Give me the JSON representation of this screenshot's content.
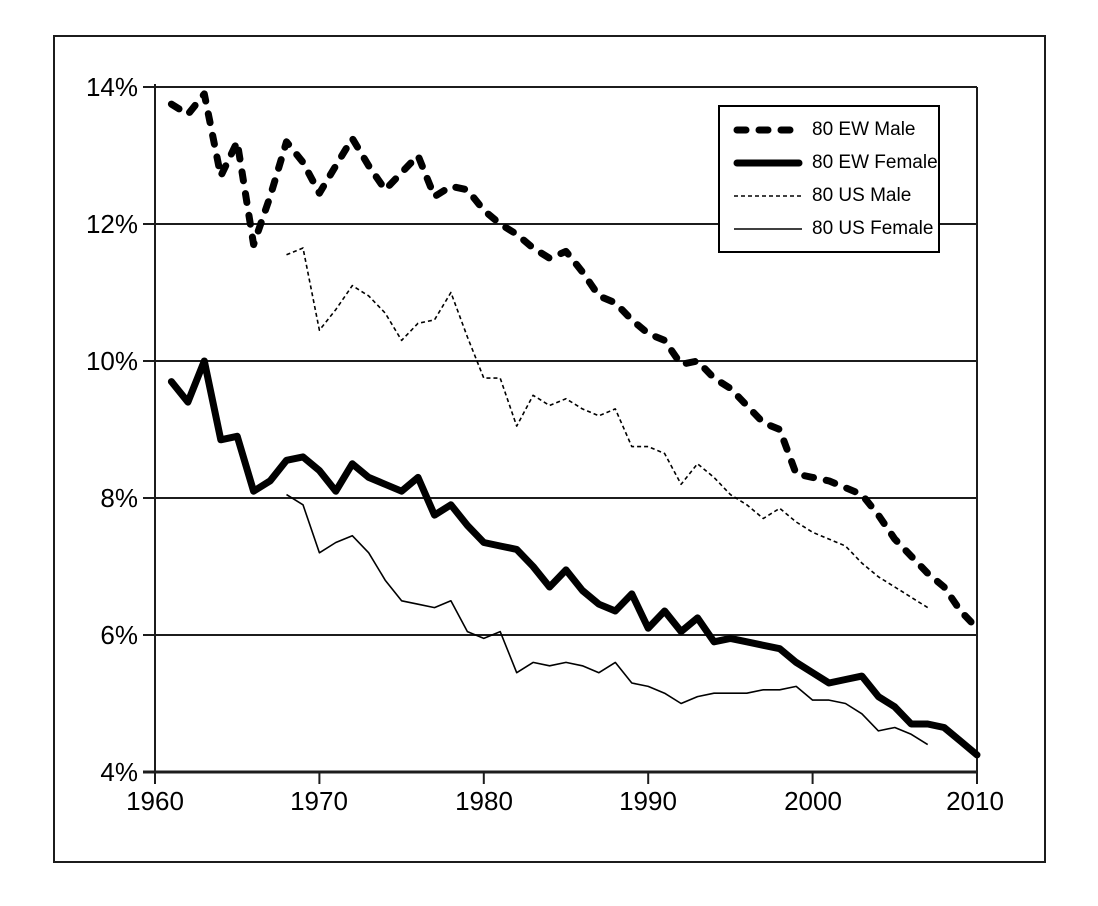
{
  "y_axis": {
    "labels": [
      "14%",
      "12%",
      "10%",
      "8%",
      "6%",
      "4%"
    ],
    "values": [
      14,
      12,
      10,
      8,
      6,
      4
    ]
  },
  "x_axis": {
    "labels": [
      "1960",
      "1970",
      "1980",
      "1990",
      "2000",
      "2010"
    ],
    "values": [
      1960,
      1970,
      1980,
      1990,
      2000,
      2010
    ]
  },
  "legend": {
    "items": [
      {
        "label": "80 EW Male",
        "line": "thick-dashed"
      },
      {
        "label": "80 EW Female",
        "line": "thick-solid"
      },
      {
        "label": "80 US Male",
        "line": "thin-dashed"
      },
      {
        "label": "80 US Female",
        "line": "thin-solid"
      }
    ]
  },
  "chart_data": {
    "type": "line",
    "title": "",
    "xlabel": "",
    "ylabel": "",
    "x_range": [
      1960,
      2010
    ],
    "ylim_percent": [
      4,
      14
    ],
    "y_gridlines_percent": [
      4,
      6,
      8,
      10,
      12,
      14
    ],
    "grid": "horizontal",
    "legend_position": "top-right",
    "series": [
      {
        "name": "80 EW Male",
        "line": "thick-dashed",
        "x_start": 1961,
        "values": [
          13.75,
          13.6,
          13.9,
          12.7,
          13.2,
          11.7,
          12.4,
          13.2,
          12.9,
          12.45,
          12.85,
          13.25,
          12.85,
          12.5,
          12.75,
          13.0,
          12.4,
          12.55,
          12.5,
          12.2,
          12.0,
          11.85,
          11.65,
          11.5,
          11.6,
          11.3,
          10.95,
          10.85,
          10.6,
          10.4,
          10.3,
          9.95,
          10.0,
          9.75,
          9.6,
          9.35,
          9.1,
          9.0,
          8.35,
          8.3,
          8.25,
          8.15,
          8.05,
          7.75,
          7.4,
          7.15,
          6.9,
          6.7,
          6.35,
          6.1
        ]
      },
      {
        "name": "80 EW Female",
        "line": "thick-solid",
        "x_start": 1961,
        "values": [
          9.7,
          9.4,
          10.0,
          8.85,
          8.9,
          8.1,
          8.25,
          8.55,
          8.6,
          8.4,
          8.1,
          8.5,
          8.3,
          8.2,
          8.1,
          8.3,
          7.75,
          7.9,
          7.6,
          7.35,
          7.3,
          7.25,
          7.0,
          6.7,
          6.95,
          6.65,
          6.45,
          6.35,
          6.6,
          6.1,
          6.35,
          6.05,
          6.25,
          5.9,
          5.95,
          5.9,
          5.85,
          5.8,
          5.6,
          5.45,
          5.3,
          5.35,
          5.4,
          5.1,
          4.95,
          4.7,
          4.7,
          4.65,
          4.45,
          4.25
        ]
      },
      {
        "name": "80 US Male",
        "line": "thin-dashed",
        "x_start": 1968,
        "values": [
          11.55,
          11.65,
          10.45,
          10.75,
          11.1,
          10.95,
          10.7,
          10.3,
          10.55,
          10.6,
          11.0,
          10.35,
          9.75,
          9.75,
          9.05,
          9.5,
          9.35,
          9.45,
          9.3,
          9.2,
          9.3,
          8.75,
          8.75,
          8.65,
          8.2,
          8.5,
          8.3,
          8.05,
          7.9,
          7.7,
          7.85,
          7.65,
          7.5,
          7.4,
          7.3,
          7.05,
          6.85,
          6.7,
          6.55,
          6.4
        ]
      },
      {
        "name": "80 US Female",
        "line": "thin-solid",
        "x_start": 1968,
        "values": [
          8.05,
          7.9,
          7.2,
          7.35,
          7.45,
          7.2,
          6.8,
          6.5,
          6.45,
          6.4,
          6.5,
          6.05,
          5.95,
          6.05,
          5.45,
          5.6,
          5.55,
          5.6,
          5.55,
          5.45,
          5.6,
          5.3,
          5.25,
          5.15,
          5.0,
          5.1,
          5.15,
          5.15,
          5.15,
          5.2,
          5.2,
          5.25,
          5.05,
          5.05,
          5.0,
          4.85,
          4.6,
          4.65,
          4.55,
          4.4
        ]
      }
    ]
  }
}
